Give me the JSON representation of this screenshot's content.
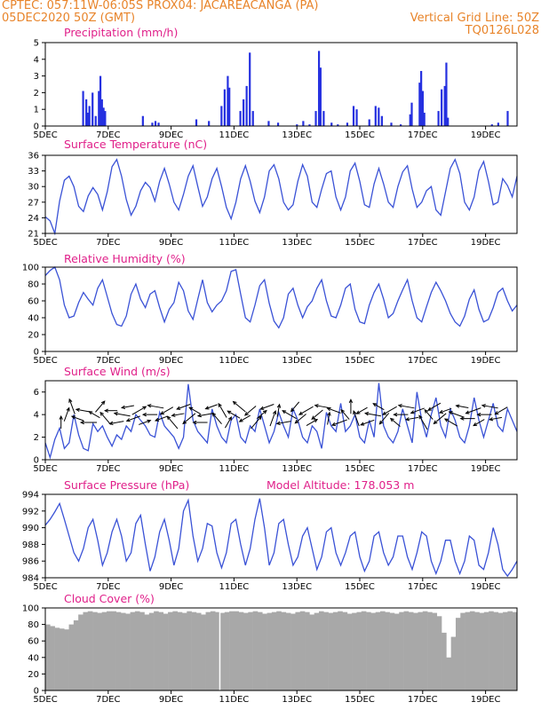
{
  "header": {
    "left_line1": "CPTEC:   057:11W-06:05S   PROX04: JACAREACANGA (PA)",
    "left_line2": "05DEC2020 50Z (GMT)",
    "right_line2": "Vertical Grid Line: 50Z",
    "right_line3": "TQ0126L028"
  },
  "colors": {
    "title": "#e0208a",
    "series": "#3a52d6",
    "bars": "#2530e0",
    "cloud": "#a8a8a8",
    "header": "#e8842a"
  },
  "x_axis": {
    "labels": [
      "5DEC",
      "7DEC",
      "9DEC",
      "11DEC",
      "13DEC",
      "15DEC",
      "17DEC",
      "19DEC"
    ],
    "range_days": [
      0,
      15
    ]
  },
  "chart_data": [
    {
      "type": "bar",
      "title": "Precipitation (mm/h)",
      "ylim": [
        0,
        5
      ],
      "yticks": [
        "0",
        "1",
        "2",
        "3",
        "4",
        "5"
      ],
      "points": [
        [
          1.2,
          2.1
        ],
        [
          1.3,
          1.6
        ],
        [
          1.35,
          0.8
        ],
        [
          1.4,
          1.2
        ],
        [
          1.5,
          2.0
        ],
        [
          1.6,
          0.6
        ],
        [
          1.7,
          2.1
        ],
        [
          1.75,
          3.0
        ],
        [
          1.8,
          1.6
        ],
        [
          1.85,
          1.1
        ],
        [
          1.9,
          0.9
        ],
        [
          3.1,
          0.6
        ],
        [
          3.4,
          0.2
        ],
        [
          3.5,
          0.3
        ],
        [
          3.6,
          0.2
        ],
        [
          4.8,
          0.4
        ],
        [
          5.2,
          0.3
        ],
        [
          5.6,
          1.2
        ],
        [
          5.7,
          2.2
        ],
        [
          5.8,
          3.0
        ],
        [
          5.85,
          2.3
        ],
        [
          6.2,
          0.9
        ],
        [
          6.3,
          1.6
        ],
        [
          6.4,
          2.4
        ],
        [
          6.5,
          4.4
        ],
        [
          6.6,
          0.9
        ],
        [
          7.1,
          0.3
        ],
        [
          7.4,
          0.2
        ],
        [
          8.0,
          0.1
        ],
        [
          8.2,
          0.3
        ],
        [
          8.4,
          0.1
        ],
        [
          8.6,
          0.9
        ],
        [
          8.7,
          4.5
        ],
        [
          8.75,
          3.5
        ],
        [
          8.85,
          0.9
        ],
        [
          9.1,
          0.2
        ],
        [
          9.3,
          0.1
        ],
        [
          9.6,
          0.2
        ],
        [
          9.8,
          1.2
        ],
        [
          9.9,
          1.0
        ],
        [
          10.3,
          0.4
        ],
        [
          10.5,
          1.2
        ],
        [
          10.6,
          1.1
        ],
        [
          10.7,
          0.6
        ],
        [
          11.0,
          0.2
        ],
        [
          11.3,
          0.1
        ],
        [
          11.6,
          0.7
        ],
        [
          11.65,
          1.4
        ],
        [
          11.9,
          2.6
        ],
        [
          11.95,
          3.3
        ],
        [
          12.0,
          2.1
        ],
        [
          12.05,
          0.8
        ],
        [
          12.5,
          0.9
        ],
        [
          12.6,
          2.2
        ],
        [
          12.7,
          2.4
        ],
        [
          12.75,
          3.8
        ],
        [
          12.8,
          0.5
        ],
        [
          14.2,
          0.1
        ],
        [
          14.4,
          0.2
        ],
        [
          14.7,
          0.9
        ]
      ]
    },
    {
      "type": "line",
      "title": "Surface Temperature (nC)",
      "ylim": [
        21,
        36
      ],
      "yticks": [
        "21",
        "24",
        "27",
        "30",
        "33",
        "36"
      ],
      "values": [
        24.2,
        23.4,
        21.0,
        27.2,
        31.2,
        32.0,
        30.0,
        26.2,
        25.2,
        28.2,
        29.8,
        28.5,
        25.5,
        29.0,
        33.8,
        35.2,
        32.0,
        27.5,
        24.5,
        26.2,
        29.2,
        30.8,
        29.8,
        27.2,
        31.0,
        33.5,
        30.5,
        27.0,
        25.5,
        28.5,
        32.0,
        34.0,
        30.0,
        26.2,
        28.0,
        31.5,
        33.5,
        30.0,
        26.0,
        23.8,
        27.0,
        31.5,
        34.0,
        31.0,
        27.2,
        25.0,
        28.0,
        33.0,
        34.2,
        31.5,
        27.0,
        25.5,
        26.5,
        31.0,
        34.2,
        32.0,
        27.0,
        26.0,
        29.5,
        32.5,
        33.0,
        28.0,
        25.5,
        28.0,
        33.0,
        34.5,
        31.0,
        26.5,
        26.0,
        30.5,
        33.5,
        30.5,
        27.0,
        26.0,
        30.0,
        32.8,
        34.0,
        29.5,
        26.0,
        27.0,
        29.2,
        30.0,
        25.5,
        24.5,
        29.0,
        33.5,
        35.2,
        32.5,
        27.0,
        25.5,
        28.0,
        33.0,
        34.8,
        31.0,
        26.5,
        27.0,
        31.5,
        30.2,
        28.0,
        32.0
      ]
    },
    {
      "type": "line",
      "title": "Relative Humidity (%)",
      "ylim": [
        0,
        100
      ],
      "yticks": [
        "0",
        "20",
        "40",
        "60",
        "80",
        "100"
      ],
      "values": [
        90.0,
        96.0,
        100.0,
        85.0,
        55.0,
        40.0,
        42.0,
        58.0,
        70.0,
        62.0,
        55.0,
        75.0,
        85.0,
        65.0,
        45.0,
        32.0,
        30.0,
        42.0,
        68.0,
        80.0,
        62.0,
        52.0,
        68.0,
        72.0,
        52.0,
        35.0,
        50.0,
        58.0,
        82.0,
        72.0,
        48.0,
        38.0,
        62.0,
        85.0,
        58.0,
        47.0,
        55.0,
        60.0,
        72.0,
        95.0,
        97.0,
        68.0,
        40.0,
        35.0,
        55.0,
        78.0,
        85.0,
        57.0,
        36.0,
        28.0,
        40.0,
        68.0,
        75.0,
        55.0,
        40.0,
        53.0,
        60.0,
        75.0,
        85.0,
        60.0,
        42.0,
        40.0,
        55.0,
        75.0,
        80.0,
        50.0,
        35.0,
        33.0,
        55.0,
        70.0,
        80.0,
        62.0,
        40.0,
        45.0,
        60.0,
        73.0,
        85.0,
        60.0,
        40.0,
        35.0,
        53.0,
        70.0,
        82.0,
        72.0,
        60.0,
        45.0,
        35.0,
        30.0,
        42.0,
        62.0,
        73.0,
        50.0,
        35.0,
        38.0,
        52.0,
        70.0,
        75.0,
        60.0,
        48.0,
        55.0
      ]
    },
    {
      "type": "line",
      "title": "Surface Wind (m/s)",
      "ylim": [
        0,
        7
      ],
      "yticks": [
        "0",
        "2",
        "4",
        "6"
      ],
      "values": [
        1.5,
        0.2,
        1.8,
        2.8,
        1.0,
        1.5,
        4.0,
        2.2,
        1.0,
        0.8,
        3.2,
        2.5,
        3.0,
        2.0,
        1.2,
        2.2,
        1.8,
        3.0,
        2.5,
        4.0,
        3.5,
        3.0,
        2.2,
        2.0,
        4.2,
        3.0,
        2.5,
        2.0,
        1.0,
        2.0,
        6.7,
        3.5,
        2.5,
        2.0,
        1.5,
        4.5,
        3.0,
        2.0,
        1.5,
        3.5,
        4.0,
        2.0,
        1.5,
        3.0,
        2.5,
        4.5,
        3.0,
        1.5,
        2.5,
        4.2,
        3.0,
        2.0,
        4.5,
        3.5,
        2.0,
        1.5,
        3.0,
        2.5,
        1.0,
        4.2,
        3.0,
        2.5,
        5.0,
        2.5,
        3.0,
        4.0,
        2.0,
        1.5,
        3.5,
        2.0,
        6.8,
        3.0,
        2.0,
        1.5,
        2.5,
        4.5,
        3.0,
        1.5,
        6.0,
        3.5,
        2.0,
        4.0,
        5.5,
        3.0,
        2.0,
        4.5,
        3.5,
        2.0,
        1.5,
        3.0,
        5.5,
        3.5,
        2.0,
        3.5,
        5.0,
        3.0,
        2.5,
        4.5,
        3.5,
        2.5
      ]
    },
    {
      "type": "line",
      "title": "Surface Pressure (hPa)",
      "subtitle": "Model Altitude: 178.053 m",
      "ylim": [
        984,
        994
      ],
      "yticks": [
        "984",
        "986",
        "988",
        "990",
        "992",
        "994"
      ],
      "values": [
        990.3,
        991.0,
        991.9,
        992.9,
        991.0,
        989.0,
        987.0,
        986.0,
        987.5,
        990.0,
        991.0,
        988.5,
        985.5,
        987.0,
        989.5,
        991.0,
        989.0,
        986.0,
        987.0,
        990.5,
        991.5,
        988.0,
        984.8,
        986.5,
        989.5,
        991.0,
        988.5,
        985.5,
        987.5,
        992.0,
        993.3,
        989.0,
        986.0,
        987.5,
        990.5,
        990.2,
        987.0,
        985.2,
        987.0,
        990.5,
        991.0,
        988.0,
        985.5,
        987.5,
        991.0,
        993.5,
        990.0,
        985.5,
        987.0,
        990.5,
        991.0,
        988.0,
        985.5,
        986.5,
        989.0,
        990.0,
        987.5,
        985.0,
        986.5,
        989.5,
        990.0,
        987.0,
        985.5,
        987.0,
        989.0,
        989.5,
        986.5,
        984.8,
        986.0,
        989.0,
        989.5,
        987.0,
        985.5,
        986.5,
        989.0,
        989.0,
        986.5,
        985.0,
        987.0,
        989.5,
        989.0,
        986.0,
        984.5,
        986.0,
        988.5,
        988.5,
        986.0,
        984.5,
        986.0,
        989.0,
        988.5,
        985.5,
        985.0,
        987.0,
        990.0,
        988.0,
        985.0,
        984.2,
        985.0,
        986.0
      ]
    },
    {
      "type": "area",
      "title": "Cloud Cover (%)",
      "ylim": [
        0,
        100
      ],
      "yticks": [
        "0",
        "20",
        "40",
        "60",
        "80",
        "100"
      ],
      "values": [
        80.0,
        78.0,
        76.0,
        75.0,
        74.0,
        80.0,
        85.0,
        92.0,
        95.0,
        96.0,
        95.0,
        94.0,
        95.0,
        96.0,
        96.0,
        95.0,
        94.0,
        93.0,
        95.0,
        96.0,
        95.0,
        92.0,
        94.0,
        96.0,
        95.0,
        93.0,
        95.0,
        96.0,
        95.0,
        94.0,
        96.0,
        95.0,
        94.0,
        92.0,
        95.0,
        96.0,
        95.0,
        94.0,
        95.0,
        96.0,
        96.0,
        95.0,
        94.0,
        95.0,
        96.0,
        95.0,
        93.0,
        94.0,
        95.0,
        96.0,
        95.0,
        94.0,
        93.0,
        95.0,
        96.0,
        95.0,
        92.0,
        94.0,
        96.0,
        95.0,
        94.0,
        95.0,
        96.0,
        95.0,
        93.0,
        94.0,
        95.0,
        96.0,
        95.0,
        94.0,
        95.0,
        96.0,
        95.0,
        94.0,
        93.0,
        95.0,
        96.0,
        95.0,
        94.0,
        95.0,
        96.0,
        95.0,
        94.0,
        90.0,
        70.0,
        40.0,
        65.0,
        88.0,
        94.0,
        95.0,
        96.0,
        95.0,
        94.0,
        95.0,
        96.0,
        95.0,
        94.0,
        95.0,
        96.0,
        95.0
      ]
    }
  ],
  "wind_arrows_deg": [
    0,
    20,
    340,
    -70,
    -80,
    -90,
    -60,
    40,
    -40,
    -90,
    -100,
    -80,
    -100,
    -110,
    60,
    70,
    -90,
    -80,
    -110,
    -120,
    -40,
    -100,
    -110,
    -130,
    -60,
    -90,
    -100,
    -110,
    -40,
    -30,
    30,
    -60,
    -50,
    -120,
    -130,
    40,
    50,
    -110,
    20,
    10,
    -100,
    -60,
    -140,
    -130,
    -120,
    60,
    -130,
    -80,
    10,
    -70,
    -110,
    -40,
    0,
    -20,
    -120,
    -110,
    -80,
    -60,
    -140,
    -120,
    -50,
    -90,
    -80,
    -100,
    -110,
    -30,
    -40,
    -120,
    -130,
    -110,
    -60,
    -70,
    -80,
    -90,
    -110,
    -120,
    -90,
    -80,
    -100,
    -120
  ]
}
